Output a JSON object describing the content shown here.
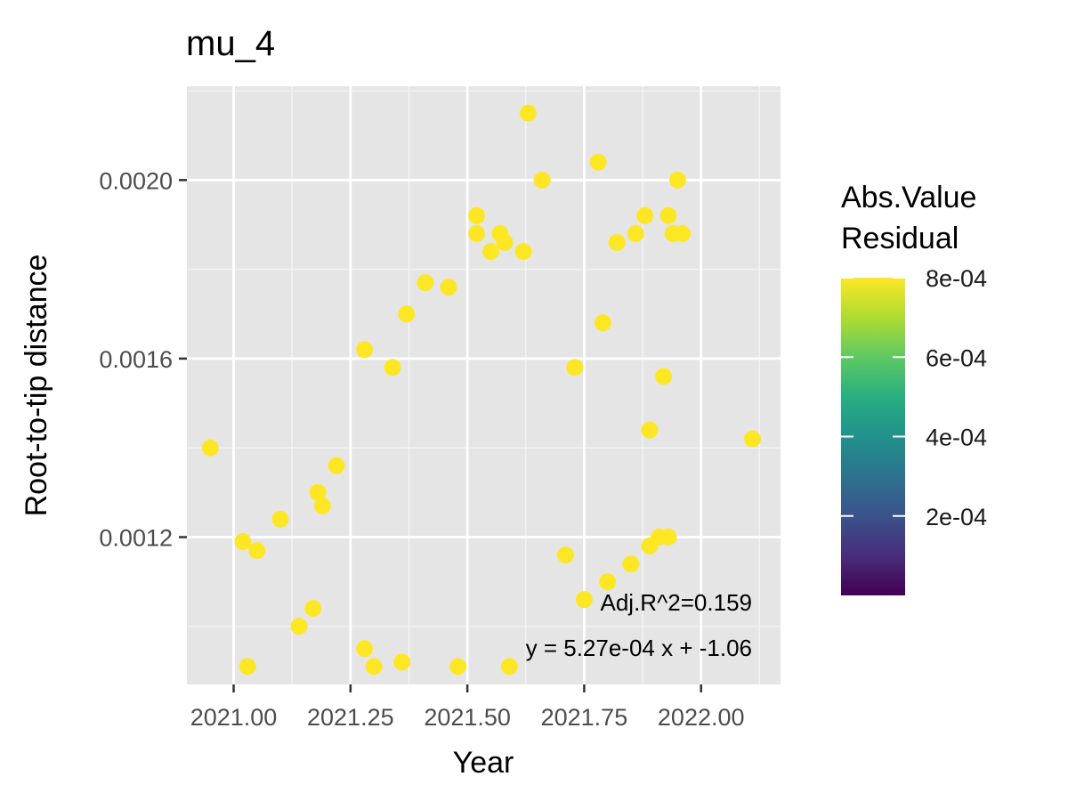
{
  "chart_data": {
    "type": "scatter",
    "title": "mu_4",
    "xlabel": "Year",
    "ylabel": "Root-to-tip distance",
    "xlim": [
      2020.9,
      2022.17
    ],
    "ylim": [
      0.00087,
      0.00221
    ],
    "x_ticks": [
      2021.0,
      2021.25,
      2021.5,
      2021.75,
      2022.0
    ],
    "x_tick_labels": [
      "2021.00",
      "2021.25",
      "2021.50",
      "2021.75",
      "2022.00"
    ],
    "y_ticks": [
      0.0012,
      0.0016,
      0.002
    ],
    "y_tick_labels": [
      "0.0012",
      "0.0016",
      "0.0020"
    ],
    "grid": true,
    "background": "#e5e5e5",
    "colormap": "viridis",
    "colorbar": {
      "title": [
        "Abs.Value",
        "Residual"
      ],
      "min": 0.0,
      "max": 0.0008,
      "ticks": [
        0.0002,
        0.0004,
        0.0006,
        0.0008
      ],
      "tick_labels": [
        "2e-04",
        "4e-04",
        "6e-04",
        "8e-04"
      ]
    },
    "fit_line": {
      "slope": 0.000527,
      "intercept": -1.06,
      "x_range": [
        2020.9,
        2022.17
      ],
      "color": "#000000"
    },
    "annotations": [
      "Adj.R^2=0.159",
      "y = 5.27e-04 x + -1.06"
    ],
    "dense_cloud": {
      "x_range": [
        2021.12,
        2021.96
      ],
      "y_offset_sd": 0.00015,
      "x_step": 0.0075,
      "y_step": 2e-05
    },
    "points": [
      [
        2021.63,
        0.00215
      ],
      [
        2021.66,
        0.002
      ],
      [
        2021.78,
        0.00204
      ],
      [
        2021.95,
        0.002
      ],
      [
        2021.52,
        0.00192
      ],
      [
        2021.52,
        0.00188
      ],
      [
        2021.57,
        0.00188
      ],
      [
        2021.58,
        0.00186
      ],
      [
        2021.88,
        0.00192
      ],
      [
        2021.93,
        0.00192
      ],
      [
        2021.94,
        0.00188
      ],
      [
        2021.96,
        0.00188
      ],
      [
        2021.86,
        0.00188
      ],
      [
        2021.82,
        0.00186
      ],
      [
        2021.62,
        0.00184
      ],
      [
        2021.55,
        0.00184
      ],
      [
        2020.95,
        0.0014
      ],
      [
        2021.03,
        0.00091
      ],
      [
        2021.02,
        0.00119
      ],
      [
        2021.05,
        0.00117
      ],
      [
        2021.1,
        0.00124
      ],
      [
        2022.11,
        0.00142
      ],
      [
        2021.28,
        0.00162
      ],
      [
        2021.34,
        0.00158
      ],
      [
        2021.37,
        0.0017
      ],
      [
        2021.41,
        0.00177
      ],
      [
        2021.46,
        0.00176
      ],
      [
        2021.59,
        0.00091
      ],
      [
        2021.48,
        0.00091
      ],
      [
        2021.75,
        0.00106
      ],
      [
        2021.93,
        0.0012
      ],
      [
        2021.91,
        0.0012
      ],
      [
        2021.89,
        0.00144
      ],
      [
        2021.92,
        0.00156
      ],
      [
        2021.8,
        0.0011
      ],
      [
        2021.71,
        0.00116
      ],
      [
        2021.14,
        0.001
      ],
      [
        2021.17,
        0.00104
      ],
      [
        2021.18,
        0.0013
      ],
      [
        2021.22,
        0.00136
      ],
      [
        2021.19,
        0.00127
      ],
      [
        2021.89,
        0.00118
      ],
      [
        2021.85,
        0.00114
      ],
      [
        2021.79,
        0.00168
      ],
      [
        2021.73,
        0.00158
      ],
      [
        2021.28,
        0.00095
      ],
      [
        2021.3,
        0.00091
      ],
      [
        2021.36,
        0.00092
      ]
    ]
  }
}
